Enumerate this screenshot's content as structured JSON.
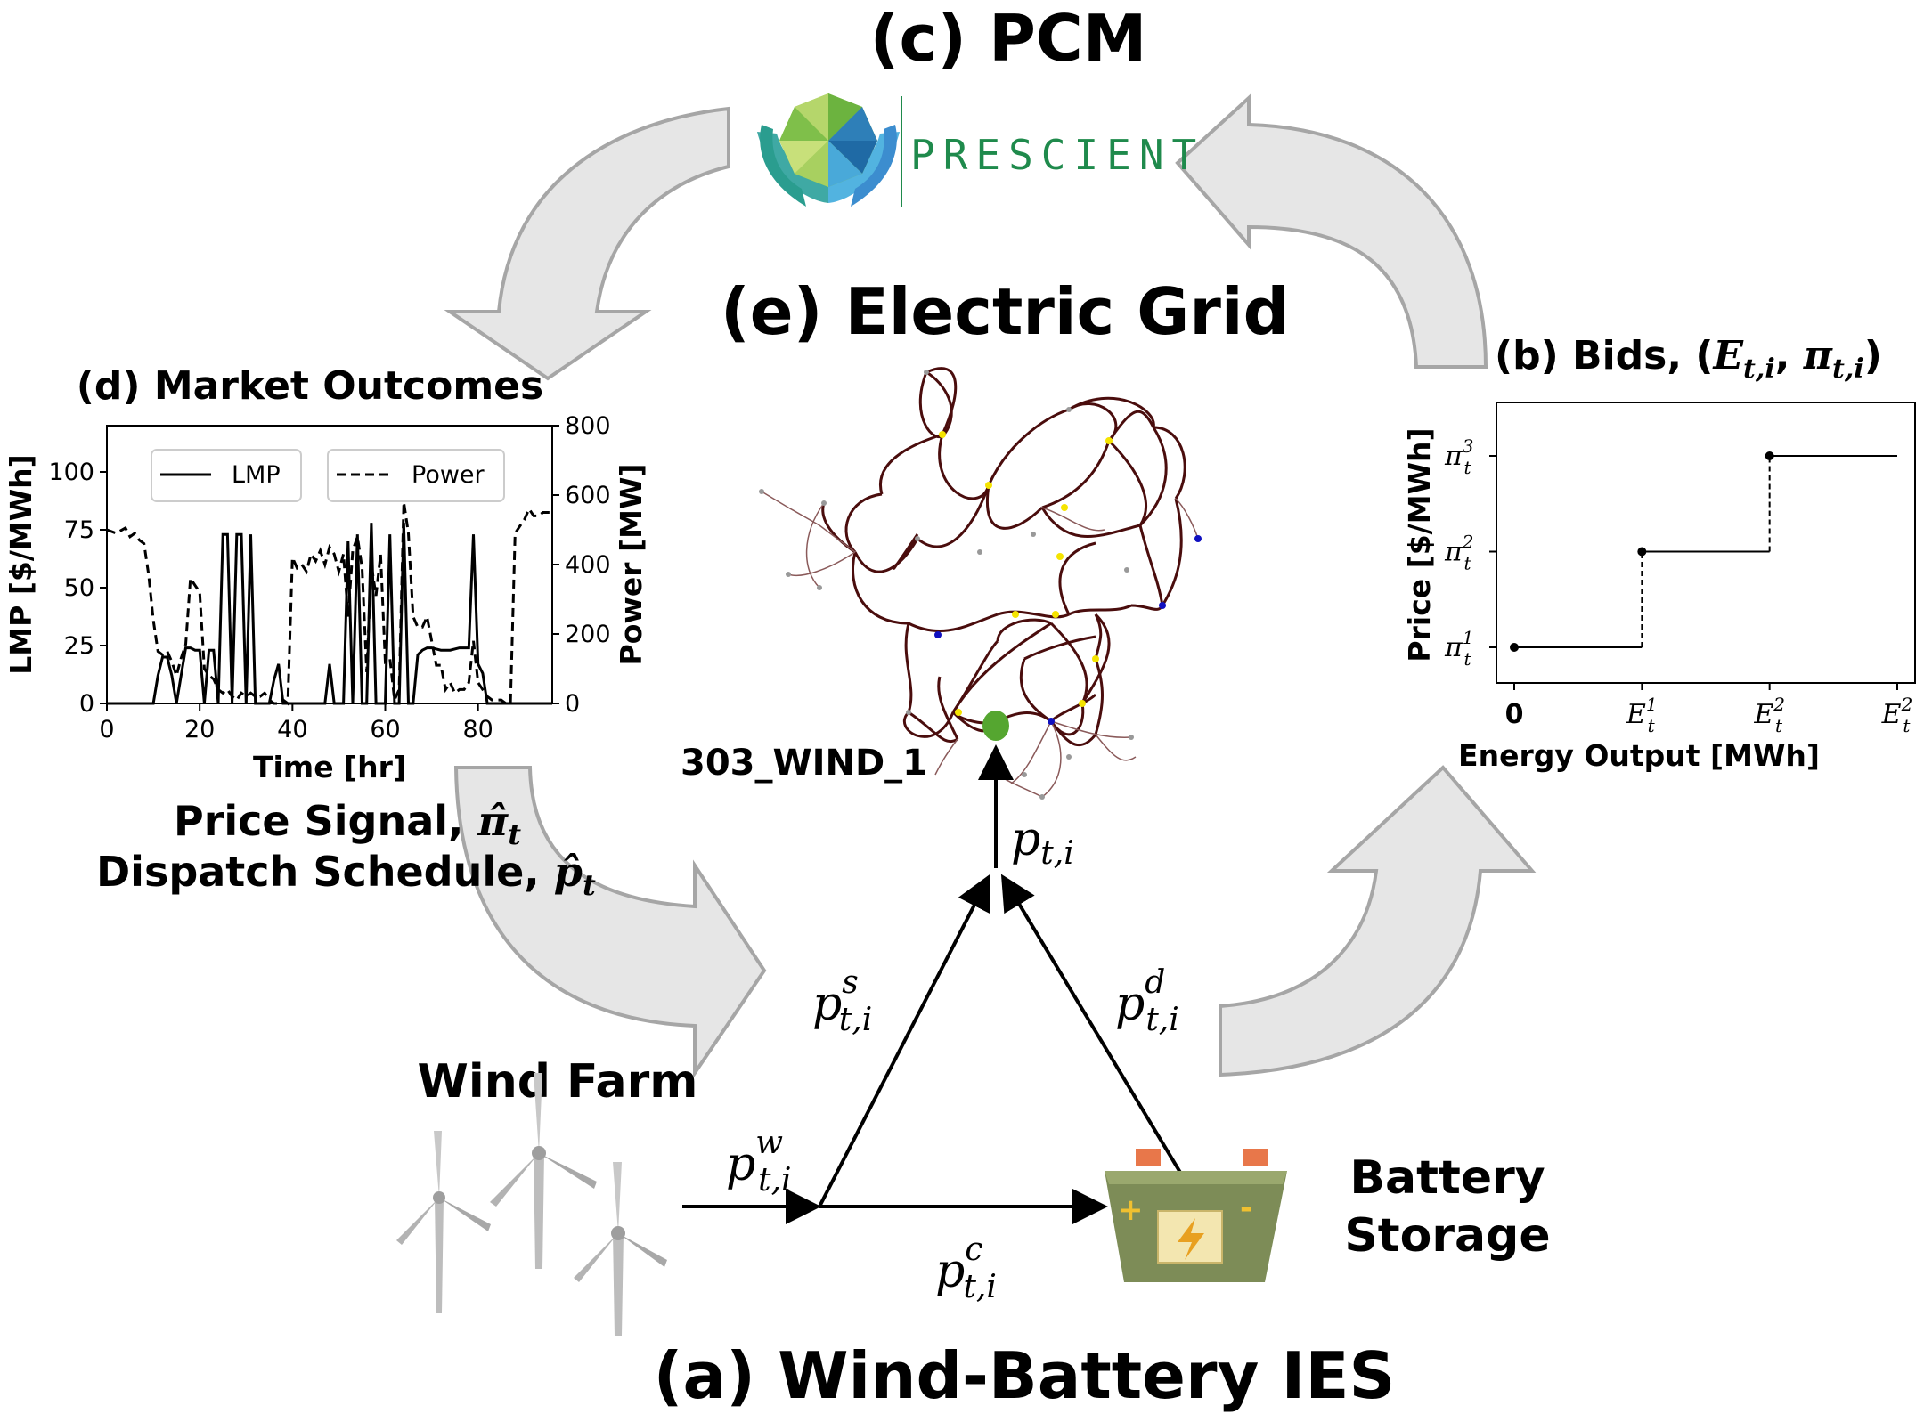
{
  "titles": {
    "pcm": "(c) PCM",
    "grid": "(e) Electric Grid",
    "market": "(d) Market Outcomes",
    "bids_prefix": "(b) Bids, (",
    "bids_E": "E",
    "bids_E_sub": "t,i",
    "bids_comma": ", ",
    "bids_pi": "π",
    "bids_pi_sub": "t,i",
    "bids_suffix": ")",
    "ies": "(a) Wind-Battery IES"
  },
  "logo": {
    "text": "PRESCIENT",
    "color": "#1f8a4c"
  },
  "labels": {
    "wind_farm": "Wind Farm",
    "battery_line1": "Battery",
    "battery_line2": "Storage",
    "bus": "303_WIND_1",
    "price_signal": "Price Signal, ",
    "price_signal_sym": "π̂",
    "price_signal_sub": "t",
    "dispatch": "Dispatch Schedule, ",
    "dispatch_sym": "p̂",
    "dispatch_sub": "t"
  },
  "flows": {
    "p_sym": "p",
    "sub": "t,i",
    "sup_w": "w",
    "sup_s": "s",
    "sup_d": "d",
    "sup_c": "c"
  },
  "colors": {
    "arrow_fill": "#e6e6e6",
    "arrow_stroke": "#a6a6a6",
    "grid_line": "#4a0d0d",
    "bus_node": "#55a630"
  },
  "chart_data": [
    {
      "type": "line",
      "title": "",
      "xlabel": "Time [hr]",
      "ylabel": "LMP [$/MWh]",
      "y2label": "Power [MW]",
      "xlim": [
        0,
        96
      ],
      "ylim": [
        0,
        120
      ],
      "y2lim": [
        0,
        800
      ],
      "xticks": [
        "0",
        "20",
        "40",
        "60",
        "80"
      ],
      "yticks": [
        "0",
        "25",
        "50",
        "75",
        "100"
      ],
      "y2ticks": [
        "0",
        "200",
        "400",
        "600",
        "800"
      ],
      "legend_position": "top",
      "series": [
        {
          "name": "LMP",
          "style": "solid",
          "axis": "left",
          "x": [
            0,
            10,
            11,
            12,
            13,
            14,
            15,
            16,
            17,
            18,
            19,
            20,
            21,
            22,
            23,
            24,
            25,
            26,
            27,
            28,
            29,
            30,
            31,
            32,
            35,
            36,
            37,
            38,
            39,
            47,
            48,
            49,
            51,
            52,
            53,
            54,
            55,
            56,
            57,
            58,
            59,
            60,
            61,
            62,
            63,
            64,
            65,
            66,
            67,
            68,
            69,
            70,
            72,
            74,
            76,
            77,
            78,
            79,
            80,
            81,
            82,
            96
          ],
          "y": [
            0,
            0,
            12,
            20,
            20,
            12,
            0,
            12,
            24,
            24,
            23,
            23,
            0,
            23,
            23,
            0,
            73,
            73,
            0,
            73,
            73,
            0,
            73,
            0,
            0,
            10,
            17,
            0,
            0,
            0,
            17,
            0,
            0,
            70,
            0,
            73,
            0,
            0,
            78,
            0,
            0,
            0,
            73,
            0,
            0,
            78,
            0,
            0,
            21,
            23,
            24,
            24,
            23,
            23,
            24,
            24,
            24,
            73,
            17,
            13,
            0,
            0
          ]
        },
        {
          "name": "Power",
          "style": "dashed",
          "axis": "right",
          "x": [
            0,
            2,
            4,
            5,
            6,
            7,
            8,
            9,
            10,
            11,
            12,
            13,
            14,
            15,
            16,
            17,
            18,
            19,
            20,
            21,
            22,
            23,
            24,
            25,
            26,
            27,
            28,
            29,
            30,
            31,
            32,
            33,
            34,
            35,
            36,
            37,
            38,
            39,
            40,
            41,
            42,
            43,
            44,
            45,
            46,
            47,
            48,
            49,
            50,
            51,
            52,
            53,
            54,
            55,
            56,
            57,
            58,
            59,
            60,
            61,
            62,
            63,
            64,
            65,
            66,
            67,
            68,
            69,
            70,
            71,
            72,
            73,
            74,
            75,
            76,
            77,
            78,
            79,
            80,
            81,
            82,
            83,
            84,
            85,
            86,
            87,
            88,
            89,
            90,
            91,
            92,
            93,
            94,
            95,
            96
          ],
          "y": [
            500,
            490,
            505,
            480,
            490,
            470,
            460,
            370,
            240,
            150,
            140,
            150,
            120,
            80,
            130,
            170,
            360,
            340,
            320,
            100,
            80,
            70,
            40,
            30,
            40,
            20,
            10,
            30,
            20,
            30,
            20,
            20,
            30,
            10,
            0,
            0,
            10,
            0,
            420,
            390,
            400,
            380,
            430,
            410,
            440,
            400,
            450,
            430,
            380,
            430,
            250,
            440,
            480,
            390,
            90,
            400,
            310,
            430,
            120,
            130,
            10,
            40,
            580,
            490,
            250,
            220,
            220,
            250,
            180,
            110,
            110,
            40,
            60,
            30,
            40,
            40,
            60,
            180,
            60,
            40,
            20,
            10,
            10,
            10,
            0,
            0,
            490,
            510,
            530,
            560,
            540,
            540,
            550,
            550,
            550
          ]
        }
      ]
    },
    {
      "type": "line",
      "title": "",
      "xlabel": "Energy Output [MWh]",
      "ylabel": "Price [$/MWh]",
      "step": true,
      "xticks": [
        "0",
        "E_t^1",
        "E_t^2",
        "E_t^2"
      ],
      "yticks": [
        "π_t^1",
        "π_t^2",
        "π_t^3"
      ],
      "points": [
        {
          "x": 0,
          "y": 1
        },
        {
          "x": 1,
          "y": 2
        },
        {
          "x": 2,
          "y": 3
        }
      ],
      "x_end": 3
    }
  ]
}
